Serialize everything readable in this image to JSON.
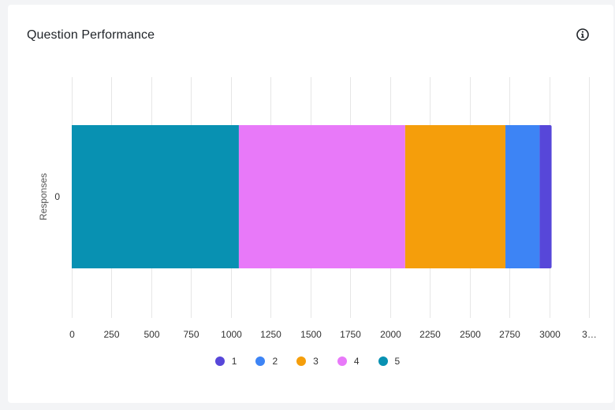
{
  "card": {
    "title": "Question Performance",
    "info_icon": "info-circle-icon"
  },
  "colors": {
    "1": "#5747d9",
    "2": "#3d84f5",
    "3": "#f59e0b",
    "4": "#e879f9",
    "5": "#0891b2",
    "grid": "#e6e6e6",
    "text": "#333333"
  },
  "chart_data": {
    "type": "bar",
    "orientation": "horizontal",
    "stacked": true,
    "categories": [
      "0"
    ],
    "ylabel": "Responses",
    "xlabel": "",
    "xlim": [
      0,
      3250
    ],
    "x_ticks": [
      "0",
      "250",
      "500",
      "750",
      "1000",
      "1250",
      "1500",
      "1750",
      "2000",
      "2250",
      "2500",
      "2750",
      "3000",
      "3…"
    ],
    "grid": true,
    "legend_position": "bottom-center",
    "series": [
      {
        "name": "5",
        "values": [
          1050
        ]
      },
      {
        "name": "4",
        "values": [
          1045
        ]
      },
      {
        "name": "3",
        "values": [
          630
        ]
      },
      {
        "name": "2",
        "values": [
          215
        ]
      },
      {
        "name": "1",
        "values": [
          75
        ]
      }
    ],
    "legend": [
      "1",
      "2",
      "3",
      "4",
      "5"
    ]
  }
}
